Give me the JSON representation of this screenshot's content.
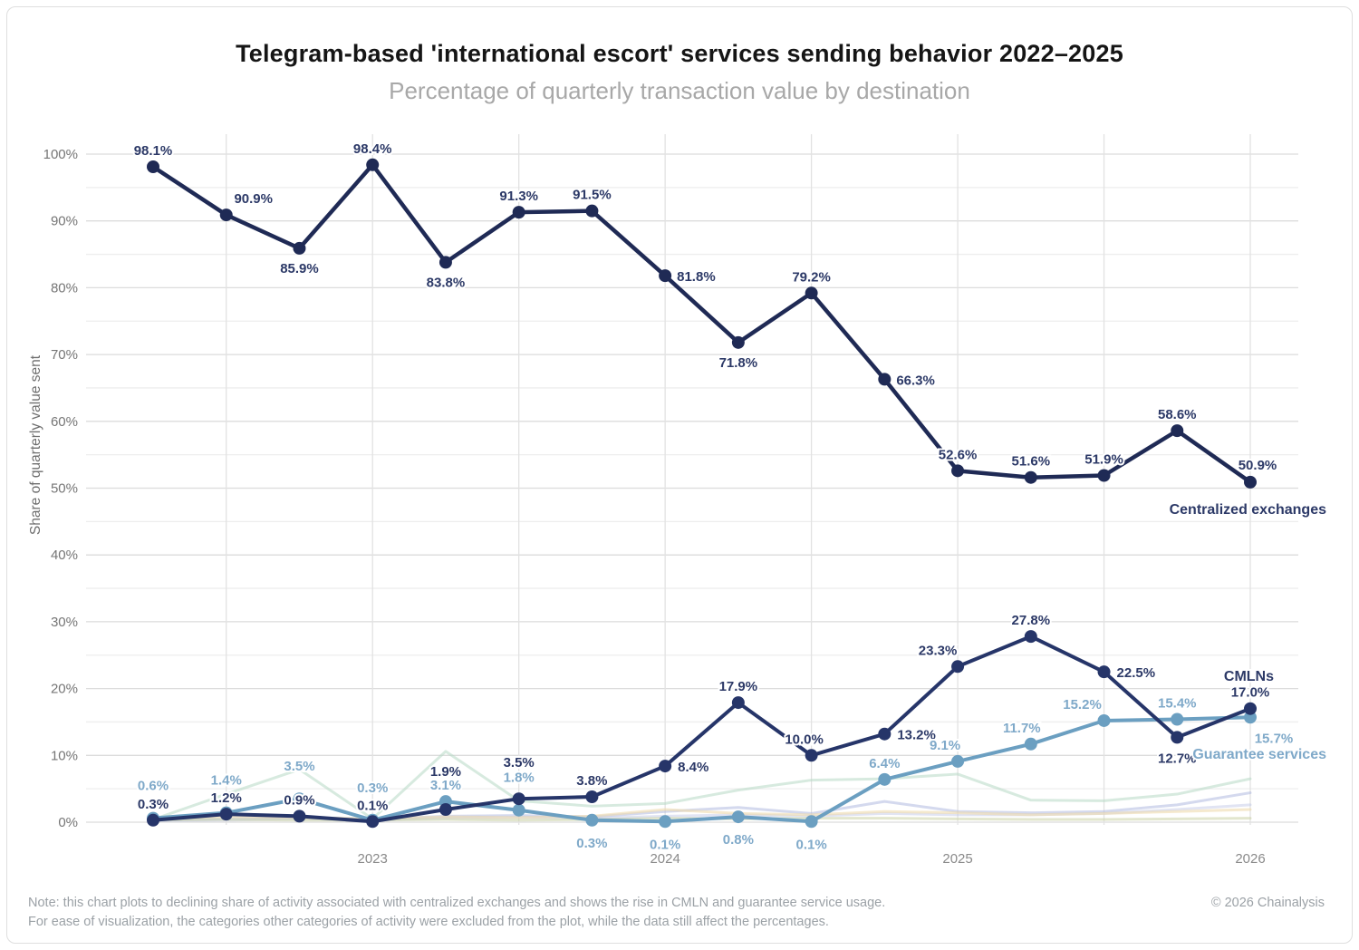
{
  "header": {
    "title": "Telegram-based 'international escort' services sending behavior 2022–2025",
    "subtitle": "Percentage of quarterly transaction value by destination"
  },
  "chart_data": {
    "type": "line",
    "title": "Telegram-based 'international escort' services sending behavior 2022–2025",
    "subtitle": "Percentage of quarterly transaction value by destination",
    "ylabel": "Share of quarterly value sent",
    "ylim": [
      0,
      100
    ],
    "grid": {
      "horizontal_step_percent": 5,
      "labeled_horizontal_step_percent": 10,
      "vertical_gridlines_at_point_indices": [
        1,
        3,
        5,
        7,
        9,
        11,
        13,
        15
      ]
    },
    "n_points": 16,
    "x_unit": "quarter",
    "x_tick_labels": [
      "2023",
      "2024",
      "2025",
      "2026"
    ],
    "x_tick_point_indices": [
      3,
      7,
      11,
      15
    ],
    "y_tick_values": [
      0,
      10,
      20,
      30,
      40,
      50,
      60,
      70,
      80,
      90,
      100
    ],
    "y_tick_labels": [
      "0%",
      "10%",
      "20%",
      "30%",
      "40%",
      "50%",
      "60%",
      "70%",
      "80%",
      "90%",
      "100%"
    ],
    "legend_position": "line-end-labels",
    "series": [
      {
        "name": "Centralized exchanges",
        "color": "#1f2a55",
        "label_color": "#2c3967",
        "values": [
          98.1,
          90.9,
          85.9,
          98.4,
          83.8,
          91.3,
          91.5,
          81.8,
          71.8,
          79.2,
          66.3,
          52.6,
          51.6,
          51.9,
          58.6,
          50.9
        ],
        "labels": [
          "98.1%",
          "90.9%",
          "85.9%",
          "98.4%",
          "83.8%",
          "91.3%",
          "91.5%",
          "81.8%",
          "71.8%",
          "79.2%",
          "66.3%",
          "52.6%",
          "51.6%",
          "51.9%",
          "58.6%",
          "50.9%"
        ]
      },
      {
        "name": "CMLNs",
        "color": "#263569",
        "label_color": "#2c3967",
        "values": [
          0.3,
          1.2,
          0.9,
          0.1,
          1.9,
          3.5,
          3.8,
          8.4,
          17.9,
          10.0,
          13.2,
          23.3,
          27.8,
          22.5,
          12.7,
          17.0
        ],
        "labels": [
          "0.3%",
          "1.2%",
          "0.9%",
          "0.1%",
          "1.9%",
          "3.5%",
          "3.8%",
          "8.4%",
          "17.9%",
          "10.0%",
          "13.2%",
          "23.3%",
          "27.8%",
          "22.5%",
          "12.7%",
          "17.0%"
        ]
      },
      {
        "name": "Guarantee services",
        "color": "#6b9fc1",
        "label_color": "#7fa9c9",
        "values": [
          0.6,
          1.4,
          3.5,
          0.3,
          3.1,
          1.8,
          0.3,
          0.1,
          0.8,
          0.1,
          6.4,
          9.1,
          11.7,
          15.2,
          15.4,
          15.7
        ],
        "labels": [
          "0.6%",
          "1.4%",
          "3.5%",
          "0.3%",
          "3.1%",
          "1.8%",
          "0.3%",
          "0.1%",
          "0.8%",
          "0.1%",
          "6.4%",
          "9.1%",
          "11.7%",
          "15.2%",
          "15.4%",
          "15.7%"
        ]
      }
    ],
    "background_series": [
      {
        "name": "other-category-mint",
        "color": "#b7d8c5",
        "opacity": 0.55,
        "values": [
          0.4,
          4.2,
          7.9,
          0.5,
          10.6,
          3.2,
          2.4,
          2.8,
          4.8,
          6.3,
          6.5,
          7.2,
          3.3,
          3.2,
          4.2,
          6.5
        ]
      },
      {
        "name": "other-category-lavender",
        "color": "#a9b4dd",
        "opacity": 0.5,
        "values": [
          0.3,
          0.5,
          0.7,
          0.4,
          0.9,
          1.0,
          0.8,
          1.6,
          2.2,
          1.3,
          3.1,
          1.6,
          1.4,
          1.6,
          2.6,
          4.4
        ]
      },
      {
        "name": "other-category-lavender-2",
        "color": "#bcc4e4",
        "opacity": 0.45,
        "values": [
          0.2,
          0.3,
          0.5,
          0.3,
          0.6,
          0.7,
          0.6,
          0.9,
          1.1,
          0.9,
          1.3,
          1.1,
          1.1,
          1.3,
          1.9,
          2.6
        ]
      },
      {
        "name": "other-category-yellow",
        "color": "#eedbae",
        "opacity": 0.6,
        "values": [
          0.5,
          0.8,
          0.7,
          0.5,
          0.8,
          0.7,
          0.9,
          1.9,
          1.3,
          1.1,
          1.6,
          1.4,
          1.1,
          1.3,
          1.6,
          1.9
        ]
      },
      {
        "name": "other-category-olive",
        "color": "#cfd6ad",
        "opacity": 0.6,
        "values": [
          0.3,
          0.4,
          0.3,
          0.3,
          0.4,
          0.3,
          0.4,
          0.6,
          0.5,
          0.6,
          0.6,
          0.5,
          0.4,
          0.4,
          0.5,
          0.6
        ]
      }
    ]
  },
  "footer": {
    "note_line1": "Note: this chart plots to declining share of activity associated with centralized exchanges and shows the rise in CMLN and guarantee service usage.",
    "note_line2": "For ease of visualization, the categories other categories of activity were excluded from the plot, while the data still affect the percentages.",
    "copyright": "© 2026 Chainalysis"
  }
}
